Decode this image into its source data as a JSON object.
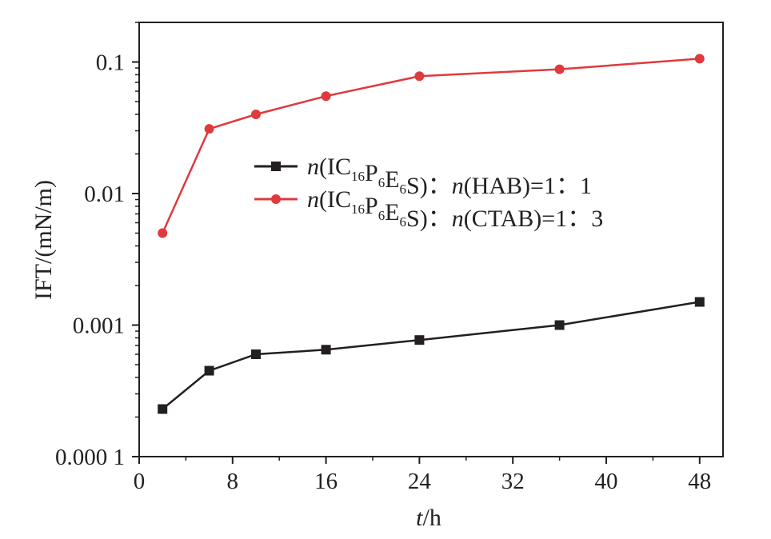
{
  "chart_data": {
    "type": "line",
    "xlabel": {
      "italic": "t",
      "rest": "/h"
    },
    "ylabel": "IFT/(mN/m)",
    "xlim": [
      0,
      50
    ],
    "ylim": [
      0.0001,
      0.2
    ],
    "yscale": "log",
    "grid": false,
    "legend_position": "center",
    "x_ticks": [
      0,
      8,
      16,
      24,
      32,
      40,
      48
    ],
    "x_tick_labels": [
      "0",
      "8",
      "16",
      "24",
      "32",
      "40",
      "48"
    ],
    "y_ticks": [
      0.0001,
      0.001,
      0.01,
      0.1
    ],
    "y_tick_labels": [
      "0.000 1",
      "0.001",
      "0.01",
      "0.1"
    ],
    "series": [
      {
        "legend": {
          "pre": "n",
          "a": "(IC",
          "s1": "16",
          "b": "P",
          "s2": "6",
          "c": "E",
          "s3": "6",
          "d": "S)",
          "sep": "：",
          "n2": "n",
          "e": "(HAB)=1",
          "sep2": "：",
          "f": "1"
        },
        "color": "#231f20",
        "marker": "square",
        "x": [
          2,
          6,
          10,
          16,
          24,
          36,
          48
        ],
        "y": [
          0.00023,
          0.00045,
          0.0006,
          0.00065,
          0.00077,
          0.001,
          0.0015
        ]
      },
      {
        "legend": {
          "pre": "n",
          "a": "(IC",
          "s1": "16",
          "b": "P",
          "s2": "6",
          "c": "E",
          "s3": "6",
          "d": "S)",
          "sep": "：",
          "n2": "n",
          "e": "(CTAB)=1",
          "sep2": "：",
          "f": "3"
        },
        "color": "#e03a3c",
        "marker": "circle",
        "x": [
          2,
          6,
          10,
          16,
          24,
          36,
          48
        ],
        "y": [
          0.005,
          0.031,
          0.04,
          0.055,
          0.078,
          0.088,
          0.106
        ]
      }
    ]
  }
}
